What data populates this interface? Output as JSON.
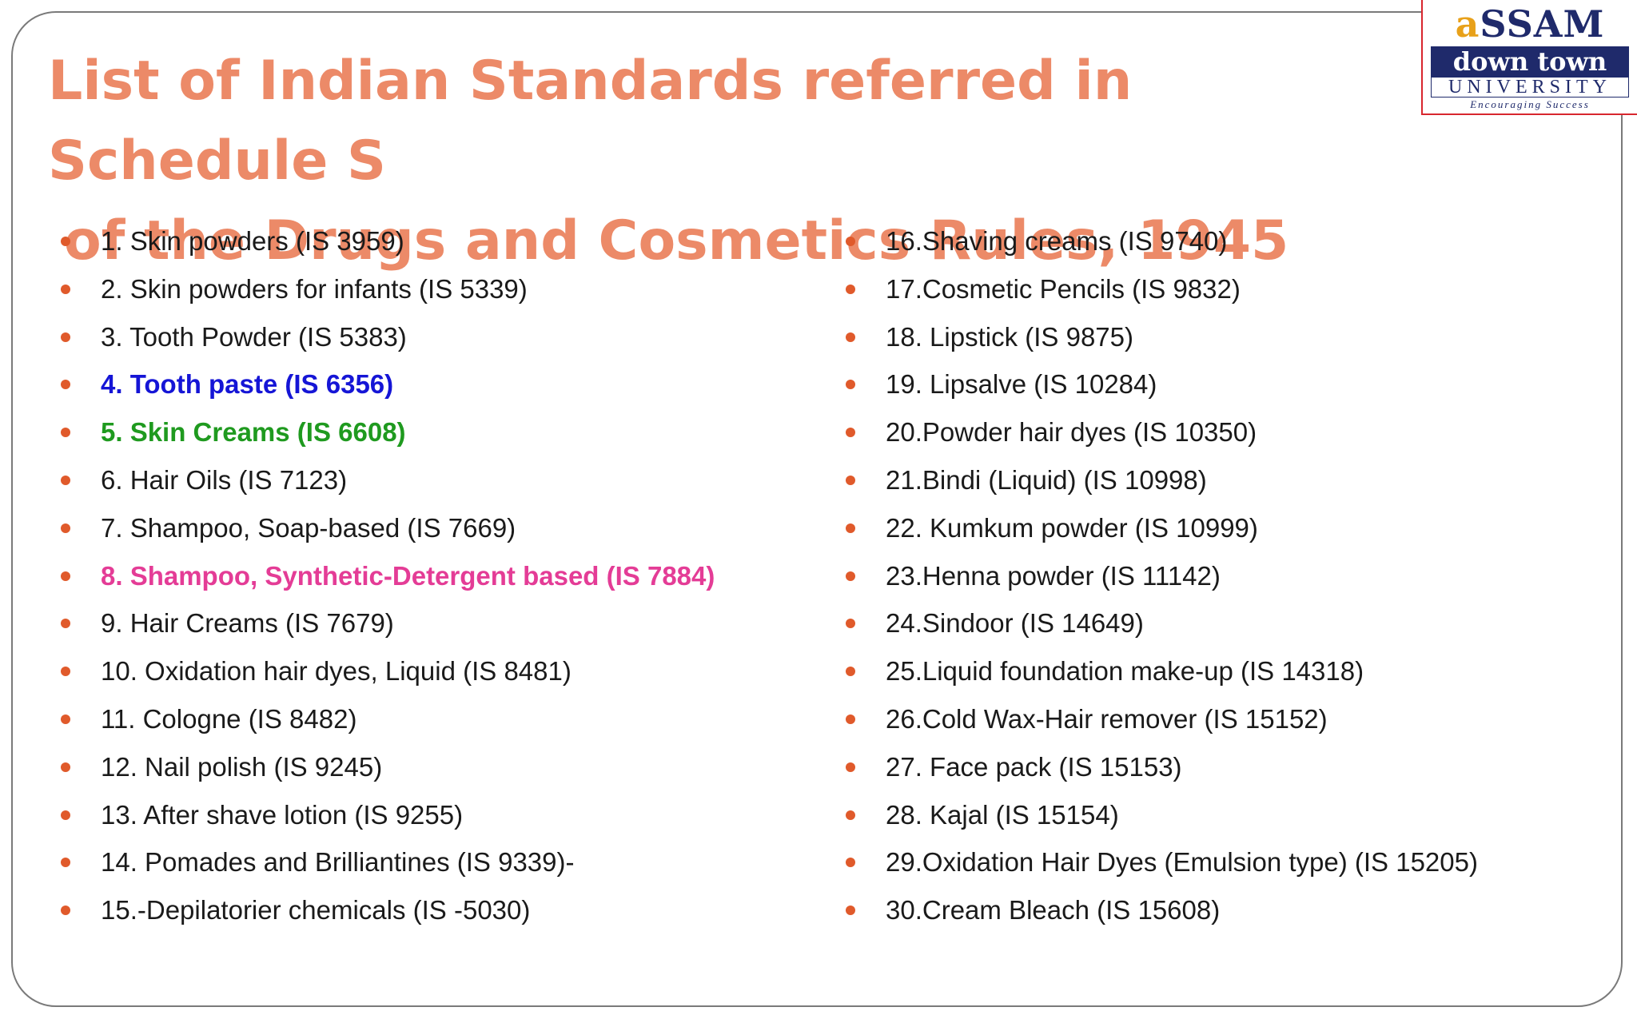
{
  "slide": {
    "title_line1": "List of Indian Standards referred in Schedule S",
    "title_line2": "of the Drugs and Cosmetics Rules, 1945",
    "logo": {
      "assam_first": "a",
      "assam_rest": "SSAM",
      "down_town": "down town",
      "university": "UNIVERSITY",
      "tagline": "Encouraging Success"
    },
    "colors": {
      "title": "#ec8a68",
      "bullet": "#e05a2b",
      "text": "#1a1a1a",
      "highlight_blue": "#1515d6",
      "highlight_green": "#1f9a1f",
      "highlight_pink": "#e43c96"
    }
  },
  "left_items": [
    {
      "text": "1. Skin powders (IS 3959)",
      "color": ""
    },
    {
      "text": "2. Skin powders for infants (IS 5339)",
      "color": ""
    },
    {
      "text": "3. Tooth Powder (IS 5383)",
      "color": ""
    },
    {
      "text": "4. Tooth paste (IS 6356)",
      "color": "#1515d6"
    },
    {
      "text": "5. Skin Creams (IS 6608)",
      "color": "#1f9a1f"
    },
    {
      "text": "6. Hair Oils (IS 7123)",
      "color": ""
    },
    {
      "text": "7. Shampoo, Soap-based (IS 7669)",
      "color": ""
    },
    {
      "text": "8. Shampoo, Synthetic-Detergent based (IS 7884)",
      "color": "#e43c96"
    },
    {
      "text": "9. Hair Creams (IS 7679)",
      "color": ""
    },
    {
      "text": "10. Oxidation hair dyes, Liquid (IS 8481)",
      "color": ""
    },
    {
      "text": "11. Cologne (IS 8482)",
      "color": ""
    },
    {
      "text": "12. Nail polish (IS 9245)",
      "color": ""
    },
    {
      "text": "13. After shave lotion (IS 9255)",
      "color": ""
    },
    {
      "text": "14. Pomades and Brilliantines (IS 9339)-",
      "color": ""
    },
    {
      "text": "15.-Depilatorier chemicals (IS -5030)",
      "color": ""
    }
  ],
  "right_items": [
    {
      "text": "16.Shaving creams (IS 9740)",
      "color": ""
    },
    {
      "text": "17.Cosmetic Pencils (IS 9832)",
      "color": ""
    },
    {
      "text": "18. Lipstick (IS 9875)",
      "color": ""
    },
    {
      "text": "19. Lipsalve (IS 10284)",
      "color": ""
    },
    {
      "text": "20.Powder hair dyes (IS 10350)",
      "color": ""
    },
    {
      "text": "21.Bindi (Liquid) (IS 10998)",
      "color": ""
    },
    {
      "text": "22. Kumkum powder (IS 10999)",
      "color": ""
    },
    {
      "text": "23.Henna powder (IS 11142)",
      "color": ""
    },
    {
      "text": "24.Sindoor (IS 14649)",
      "color": ""
    },
    {
      "text": "25.Liquid foundation make-up (IS 14318)",
      "color": ""
    },
    {
      "text": "26.Cold Wax-Hair remover (IS 15152)",
      "color": ""
    },
    {
      "text": "27. Face pack (IS 15153)",
      "color": ""
    },
    {
      "text": "28. Kajal (IS 15154)",
      "color": ""
    },
    {
      "text": "29.Oxidation Hair Dyes (Emulsion type) (IS 15205)",
      "color": ""
    },
    {
      "text": "30.Cream Bleach (IS 15608)",
      "color": ""
    }
  ]
}
